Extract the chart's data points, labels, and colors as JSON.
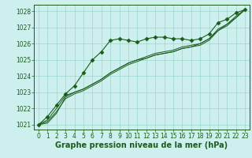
{
  "title": "Graphe pression niveau de la mer (hPa)",
  "xlabel": "Graphe pression niveau de la mer (hPa)",
  "bg_color": "#cdf0ee",
  "grid_color": "#9ed4cc",
  "line_color": "#1a5c1a",
  "marker_color": "#1a5c1a",
  "xlim": [
    -0.5,
    23.5
  ],
  "ylim": [
    1020.7,
    1028.4
  ],
  "yticks": [
    1021,
    1022,
    1023,
    1024,
    1025,
    1026,
    1027,
    1028
  ],
  "xticks": [
    0,
    1,
    2,
    3,
    4,
    5,
    6,
    7,
    8,
    9,
    10,
    11,
    12,
    13,
    14,
    15,
    16,
    17,
    18,
    19,
    20,
    21,
    22,
    23
  ],
  "series": [
    [
      1021.0,
      1021.5,
      1022.2,
      1022.9,
      1023.4,
      1024.2,
      1025.0,
      1025.5,
      1026.2,
      1026.3,
      1026.2,
      1026.1,
      1026.3,
      1026.4,
      1026.4,
      1026.3,
      1026.3,
      1026.2,
      1026.3,
      1026.6,
      1027.3,
      1027.5,
      1027.9,
      1028.1
    ],
    [
      1021.0,
      1021.3,
      1022.0,
      1022.8,
      1023.0,
      1023.2,
      1023.5,
      1023.8,
      1024.2,
      1024.5,
      1024.8,
      1025.0,
      1025.2,
      1025.4,
      1025.5,
      1025.6,
      1025.8,
      1025.9,
      1026.0,
      1026.3,
      1026.9,
      1027.2,
      1027.7,
      1028.1
    ],
    [
      1021.0,
      1021.2,
      1021.8,
      1022.6,
      1022.9,
      1023.1,
      1023.4,
      1023.7,
      1024.1,
      1024.4,
      1024.7,
      1024.9,
      1025.1,
      1025.3,
      1025.4,
      1025.5,
      1025.7,
      1025.8,
      1025.9,
      1026.2,
      1026.8,
      1027.1,
      1027.6,
      1028.1
    ],
    [
      1021.0,
      1021.1,
      1021.7,
      1022.7,
      1023.0,
      1023.2,
      1023.5,
      1023.8,
      1024.2,
      1024.5,
      1024.8,
      1025.0,
      1025.1,
      1025.3,
      1025.4,
      1025.5,
      1025.7,
      1025.8,
      1026.0,
      1026.3,
      1026.8,
      1027.2,
      1027.6,
      1028.1
    ]
  ],
  "fontsize_label": 7.0,
  "fontsize_tick": 5.5,
  "tick_label_color": "#1a5c1a"
}
